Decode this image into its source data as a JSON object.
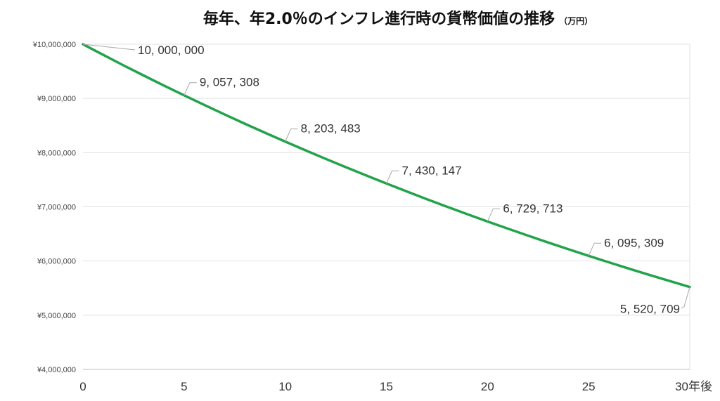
{
  "chart_data": {
    "type": "line",
    "title": "毎年、年2.0％のインフレ進行時の貨幣価値の推移",
    "title_unit": "（万円）",
    "x_ticks": [
      "0",
      "5",
      "10",
      "15",
      "20",
      "25",
      "30年後"
    ],
    "xlim": [
      0,
      30
    ],
    "ylim": [
      4000000,
      10000000
    ],
    "y_ticks": [
      {
        "value": 10000000,
        "label": "¥10,000,000"
      },
      {
        "value": 9000000,
        "label": "¥9,000,000"
      },
      {
        "value": 8000000,
        "label": "¥8,000,000"
      },
      {
        "value": 7000000,
        "label": "¥7,000,000"
      },
      {
        "value": 6000000,
        "label": "¥6,000,000"
      },
      {
        "value": 5000000,
        "label": "¥5,000,000"
      },
      {
        "value": 4000000,
        "label": "¥4,000,000"
      }
    ],
    "grid": true,
    "legend": "none",
    "series_color": "#22a34a",
    "series": [
      {
        "x": [
          0,
          1,
          2,
          3,
          4,
          5,
          6,
          7,
          8,
          9,
          10,
          11,
          12,
          13,
          14,
          15,
          16,
          17,
          18,
          19,
          20,
          21,
          22,
          23,
          24,
          25,
          26,
          27,
          28,
          29,
          30
        ],
        "values": [
          10000000,
          9803922,
          9611688,
          9423223,
          9238454,
          9057308,
          8879714,
          8705602,
          8534904,
          8367553,
          8203483,
          8042630,
          7884932,
          7730325,
          7578750,
          7430147,
          7284458,
          7141626,
          7001594,
          6864308,
          6729713,
          6597758,
          6468390,
          6341559,
          6217215,
          6095309,
          5975793,
          5858621,
          5743746,
          5631123,
          5520709
        ]
      }
    ],
    "data_labels": [
      {
        "x": 0,
        "y": 10000000,
        "text": "10, 000, 000"
      },
      {
        "x": 5,
        "y": 9057308,
        "text": "9, 057, 308"
      },
      {
        "x": 10,
        "y": 8203483,
        "text": "8, 203, 483"
      },
      {
        "x": 15,
        "y": 7430147,
        "text": "7, 430, 147"
      },
      {
        "x": 20,
        "y": 6729713,
        "text": "6, 729, 713"
      },
      {
        "x": 25,
        "y": 6095309,
        "text": "6, 095, 309"
      },
      {
        "x": 30,
        "y": 5520709,
        "text": "5, 520, 709"
      }
    ]
  }
}
